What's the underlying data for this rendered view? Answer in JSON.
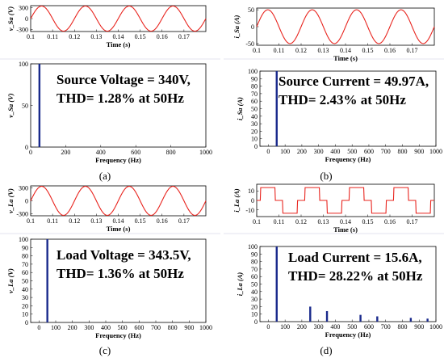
{
  "captions": [
    "(a)",
    "(b)",
    "(c)",
    "(d)"
  ],
  "chart_data": [
    {
      "id": "vsa_wave",
      "type": "line",
      "ylabel": "v_Sa (V)",
      "xlabel": "Time (s)",
      "xlim": [
        0.1,
        0.18
      ],
      "ylim": [
        -350,
        350
      ],
      "xticks": [
        0.1,
        0.11,
        0.12,
        0.13,
        0.14,
        0.15,
        0.16,
        0.17
      ],
      "xtick_labels": [
        "0.1",
        "0.11",
        "0.12",
        "0.13",
        "0.14",
        "0.15",
        "0.16",
        "0.17"
      ],
      "yticks": [
        -300,
        0,
        300
      ],
      "ytick_labels": [
        "-300",
        "0",
        "300"
      ],
      "series": [
        {
          "shape": "sine",
          "amplitude": 340,
          "frequency_hz": 50,
          "phase_deg": 0,
          "color": "#e8241e"
        }
      ]
    },
    {
      "id": "isa_wave",
      "type": "line",
      "ylabel": "i_Sa (A)",
      "xlabel": "Time (s)",
      "xlim": [
        0.1,
        0.18
      ],
      "ylim": [
        -55,
        55
      ],
      "xticks": [
        0.1,
        0.11,
        0.12,
        0.13,
        0.14,
        0.15,
        0.16,
        0.17
      ],
      "xtick_labels": [
        "0.1",
        "0.11",
        "0.12",
        "0.13",
        "0.14",
        "0.15",
        "0.16",
        "0.17"
      ],
      "yticks": [
        -50,
        0,
        50
      ],
      "ytick_labels": [
        "-50",
        "0",
        "50"
      ],
      "series": [
        {
          "shape": "sine",
          "amplitude": 50,
          "frequency_hz": 50,
          "phase_deg": 0,
          "color": "#e8241e"
        }
      ]
    },
    {
      "id": "vsa_fft",
      "type": "bar",
      "ylabel": "v_Sa (V)",
      "xlabel": "Frequency (Hz)",
      "xlim": [
        0,
        1000
      ],
      "ylim": [
        0,
        100
      ],
      "xticks": [
        0,
        200,
        400,
        600,
        800,
        1000
      ],
      "xtick_labels": [
        "0",
        "200",
        "400",
        "600",
        "800",
        "1000"
      ],
      "yticks": [
        0,
        50,
        100
      ],
      "ytick_labels": [
        "0",
        "50",
        "100"
      ],
      "bars": [
        {
          "x": 50,
          "y": 100
        }
      ],
      "bar_color": "#1a2a8c",
      "annotation": [
        "Source Voltage = 340V,",
        "THD= 1.28% at 50Hz"
      ]
    },
    {
      "id": "isa_fft",
      "type": "bar",
      "ylabel": "i_Sa (A)",
      "xlabel": "Frequency (Hz)",
      "xlim": [
        -50,
        1000
      ],
      "ylim": [
        0,
        100
      ],
      "xticks": [
        0,
        100,
        200,
        300,
        400,
        500,
        600,
        700,
        800,
        900,
        1000
      ],
      "xtick_labels": [
        "0",
        "100",
        "200",
        "300",
        "400",
        "500",
        "600",
        "700",
        "800",
        "900",
        "1000"
      ],
      "yticks": [
        0,
        10,
        20,
        30,
        40,
        50,
        60,
        70,
        80,
        90,
        100
      ],
      "ytick_labels": [
        "0",
        "10",
        "20",
        "30",
        "40",
        "50",
        "60",
        "70",
        "80",
        "90",
        "100"
      ],
      "bars": [
        {
          "x": 50,
          "y": 100
        }
      ],
      "bar_color": "#1a2a8c",
      "annotation": [
        "Source Current = 49.97A,",
        "THD= 2.43% at 50Hz"
      ]
    },
    {
      "id": "vla_wave",
      "type": "line",
      "ylabel": "v_La (V)",
      "xlabel": "Time (s)",
      "xlim": [
        0.1,
        0.18
      ],
      "ylim": [
        -350,
        350
      ],
      "xticks": [
        0.1,
        0.11,
        0.12,
        0.13,
        0.14,
        0.15,
        0.16,
        0.17
      ],
      "xtick_labels": [
        "0.1",
        "0.11",
        "0.12",
        "0.13",
        "0.14",
        "0.15",
        "0.16",
        "0.17"
      ],
      "yticks": [
        -300,
        0,
        300
      ],
      "ytick_labels": [
        "-300",
        "0",
        "300"
      ],
      "series": [
        {
          "shape": "sine",
          "amplitude": 340,
          "frequency_hz": 50,
          "phase_deg": 0,
          "color": "#e8241e"
        }
      ]
    },
    {
      "id": "ila_wave",
      "type": "line",
      "ylabel": "i_La (A)",
      "xlabel": "Time (s)",
      "xlim": [
        0.1,
        0.18
      ],
      "ylim": [
        -17,
        17
      ],
      "xticks": [
        0.1,
        0.11,
        0.12,
        0.13,
        0.14,
        0.15,
        0.16,
        0.17
      ],
      "xtick_labels": [
        "0.1",
        "0.11",
        "0.12",
        "0.13",
        "0.14",
        "0.15",
        "0.16",
        "0.17"
      ],
      "yticks": [
        -10,
        0,
        10
      ],
      "ytick_labels": [
        "-10",
        "0",
        "10"
      ],
      "series": [
        {
          "shape": "quasi-square",
          "amplitude": 13.5,
          "frequency_hz": 50,
          "phase_deg": 0,
          "color": "#e8241e"
        }
      ]
    },
    {
      "id": "vla_fft",
      "type": "bar",
      "ylabel": "v_La (V)",
      "xlabel": "Frequency (Hz)",
      "xlim": [
        -50,
        1000
      ],
      "ylim": [
        0,
        100
      ],
      "xticks": [
        0,
        100,
        200,
        300,
        400,
        500,
        600,
        700,
        800,
        900,
        1000
      ],
      "xtick_labels": [
        "0",
        "100",
        "200",
        "300",
        "400",
        "500",
        "600",
        "700",
        "800",
        "900",
        "1000"
      ],
      "yticks": [
        0,
        10,
        20,
        30,
        40,
        50,
        60,
        70,
        80,
        90,
        100
      ],
      "ytick_labels": [
        "0",
        "10",
        "20",
        "30",
        "40",
        "50",
        "60",
        "70",
        "80",
        "90",
        "100"
      ],
      "bars": [
        {
          "x": 50,
          "y": 100
        }
      ],
      "bar_color": "#1a2a8c",
      "annotation": [
        "Load Voltage = 343.5V,",
        "THD= 1.36% at 50Hz"
      ]
    },
    {
      "id": "ila_fft",
      "type": "bar",
      "ylabel": "i_La (A)",
      "xlabel": "Frequency (Hz)",
      "xlim": [
        -50,
        1000
      ],
      "ylim": [
        0,
        100
      ],
      "xticks": [
        0,
        100,
        200,
        300,
        400,
        500,
        600,
        700,
        800,
        900,
        1000
      ],
      "xtick_labels": [
        "0",
        "100",
        "200",
        "300",
        "400",
        "500",
        "600",
        "700",
        "800",
        "900",
        "1000"
      ],
      "yticks": [
        0,
        10,
        20,
        30,
        40,
        50,
        60,
        70,
        80,
        90,
        100
      ],
      "ytick_labels": [
        "0",
        "10",
        "20",
        "30",
        "40",
        "50",
        "60",
        "70",
        "80",
        "90",
        "100"
      ],
      "bars": [
        {
          "x": 50,
          "y": 100
        },
        {
          "x": 250,
          "y": 20
        },
        {
          "x": 350,
          "y": 14
        },
        {
          "x": 550,
          "y": 9
        },
        {
          "x": 650,
          "y": 7
        },
        {
          "x": 850,
          "y": 5
        },
        {
          "x": 950,
          "y": 4
        }
      ],
      "bar_color": "#1a2a8c",
      "annotation": [
        "Load Current = 15.6A,",
        "THD= 28.22% at 50Hz"
      ]
    }
  ]
}
